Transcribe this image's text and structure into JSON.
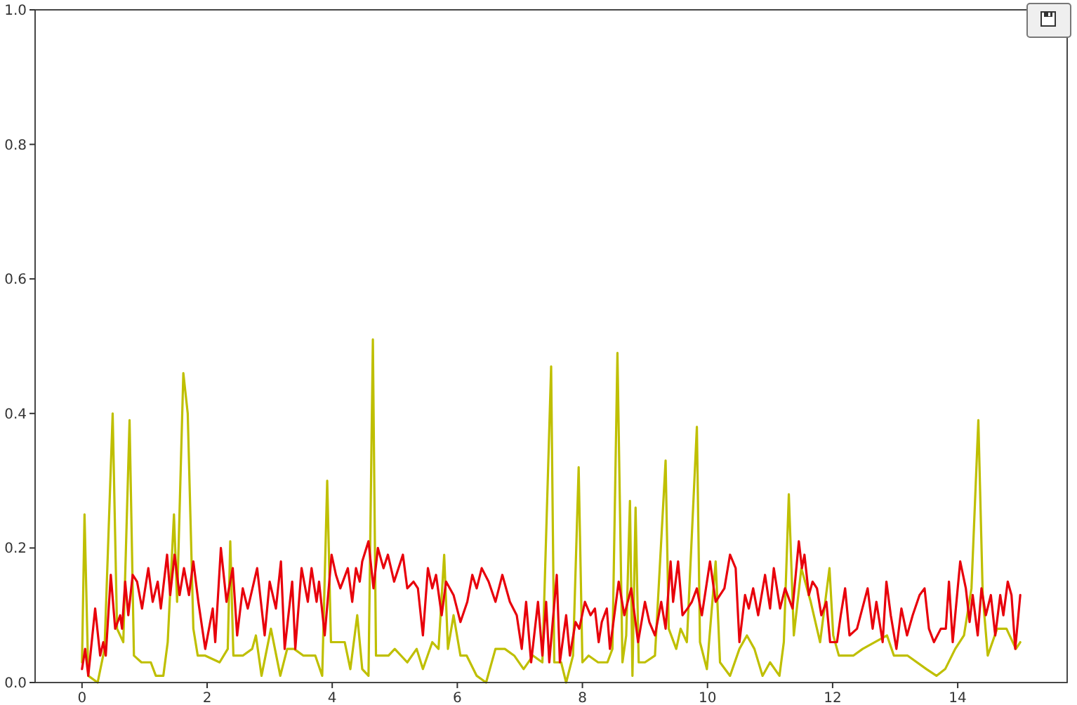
{
  "chart_data": {
    "type": "line",
    "xlim": [
      -0.75,
      15.75
    ],
    "xticks": [
      0,
      2,
      4,
      6,
      8,
      10,
      12,
      14
    ],
    "ylim": [
      0,
      1
    ],
    "yticks": [
      {
        "value": 0,
        "label": "0.0"
      },
      0.2,
      0.4,
      0.6,
      0.8,
      {
        "value": 1,
        "label": "1.0"
      }
    ],
    "series": [
      {
        "color": "#bfbf00",
        "x": [
          0,
          0.04,
          0.1,
          0.25,
          0.36,
          0.49,
          0.56,
          0.66,
          0.76,
          0.83,
          0.95,
          1.1,
          1.18,
          1.3,
          1.37,
          1.47,
          1.52,
          1.62,
          1.69,
          1.78,
          1.85,
          1.97,
          2.2,
          2.33,
          2.37,
          2.42,
          2.57,
          2.72,
          2.78,
          2.87,
          3.02,
          3.17,
          3.28,
          3.39,
          3.54,
          3.73,
          3.84,
          3.92,
          3.98,
          4.1,
          4.2,
          4.29,
          4.4,
          4.48,
          4.58,
          4.65,
          4.7,
          4.9,
          5,
          5.2,
          5.35,
          5.45,
          5.6,
          5.7,
          5.79,
          5.85,
          5.94,
          6.05,
          6.15,
          6.31,
          6.46,
          6.61,
          6.76,
          6.91,
          7.06,
          7.21,
          7.36,
          7.5,
          7.55,
          7.66,
          7.74,
          7.85,
          7.94,
          8,
          8.1,
          8.25,
          8.4,
          8.48,
          8.56,
          8.64,
          8.7,
          8.76,
          8.8,
          8.85,
          8.9,
          9,
          9.16,
          9.33,
          9.38,
          9.5,
          9.57,
          9.67,
          9.83,
          9.88,
          9.99,
          10.13,
          10.2,
          10.36,
          10.51,
          10.63,
          10.75,
          10.88,
          11,
          11.15,
          11.22,
          11.3,
          11.38,
          11.5,
          11.65,
          11.8,
          11.95,
          12.01,
          12.1,
          12.33,
          12.48,
          12.87,
          12.98,
          13.2,
          13.5,
          13.66,
          13.8,
          13.96,
          14.1,
          14.22,
          14.33,
          14.4,
          14.48,
          14.63,
          14.78,
          14.93,
          15
        ],
        "values": [
          0.03,
          0.25,
          0.01,
          0,
          0.05,
          0.4,
          0.08,
          0.06,
          0.39,
          0.04,
          0.03,
          0.03,
          0.01,
          0.01,
          0.06,
          0.25,
          0.12,
          0.46,
          0.4,
          0.08,
          0.04,
          0.04,
          0.03,
          0.05,
          0.21,
          0.04,
          0.04,
          0.05,
          0.07,
          0.01,
          0.08,
          0.01,
          0.05,
          0.05,
          0.04,
          0.04,
          0.01,
          0.3,
          0.06,
          0.06,
          0.06,
          0.02,
          0.1,
          0.02,
          0.01,
          0.51,
          0.04,
          0.04,
          0.05,
          0.03,
          0.05,
          0.02,
          0.06,
          0.05,
          0.19,
          0.05,
          0.1,
          0.04,
          0.04,
          0.01,
          0,
          0.05,
          0.05,
          0.04,
          0.02,
          0.04,
          0.03,
          0.47,
          0.03,
          0.03,
          0,
          0.04,
          0.32,
          0.03,
          0.04,
          0.03,
          0.03,
          0.05,
          0.49,
          0.03,
          0.07,
          0.27,
          0.01,
          0.26,
          0.03,
          0.03,
          0.04,
          0.33,
          0.08,
          0.05,
          0.08,
          0.06,
          0.38,
          0.06,
          0.02,
          0.18,
          0.03,
          0.01,
          0.05,
          0.07,
          0.05,
          0.01,
          0.03,
          0.01,
          0.06,
          0.28,
          0.07,
          0.17,
          0.12,
          0.06,
          0.17,
          0.07,
          0.04,
          0.04,
          0.05,
          0.07,
          0.04,
          0.04,
          0.02,
          0.01,
          0.02,
          0.05,
          0.07,
          0.14,
          0.39,
          0.13,
          0.04,
          0.08,
          0.08,
          0.05,
          0.06
        ]
      },
      {
        "color": "#e8000b",
        "x": [
          0,
          0.05,
          0.1,
          0.21,
          0.29,
          0.34,
          0.38,
          0.46,
          0.53,
          0.61,
          0.64,
          0.69,
          0.74,
          0.81,
          0.88,
          0.96,
          1.06,
          1.13,
          1.21,
          1.26,
          1.36,
          1.41,
          1.48,
          1.56,
          1.63,
          1.71,
          1.78,
          1.86,
          1.97,
          2.09,
          2.13,
          2.22,
          2.31,
          2.41,
          2.48,
          2.57,
          2.65,
          2.8,
          2.92,
          3,
          3.1,
          3.18,
          3.24,
          3.36,
          3.41,
          3.51,
          3.61,
          3.67,
          3.75,
          3.79,
          3.88,
          3.99,
          4.06,
          4.13,
          4.25,
          4.32,
          4.38,
          4.44,
          4.48,
          4.58,
          4.66,
          4.73,
          4.82,
          4.89,
          4.99,
          5.13,
          5.2,
          5.3,
          5.37,
          5.45,
          5.53,
          5.6,
          5.66,
          5.75,
          5.82,
          5.94,
          6.05,
          6.16,
          6.24,
          6.31,
          6.39,
          6.5,
          6.61,
          6.72,
          6.84,
          6.95,
          7.03,
          7.1,
          7.18,
          7.29,
          7.36,
          7.42,
          7.47,
          7.59,
          7.64,
          7.74,
          7.8,
          7.89,
          7.95,
          8.04,
          8.13,
          8.2,
          8.26,
          8.31,
          8.39,
          8.44,
          8.58,
          8.67,
          8.78,
          8.89,
          9,
          9.07,
          9.16,
          9.26,
          9.33,
          9.41,
          9.45,
          9.53,
          9.6,
          9.68,
          9.75,
          9.83,
          9.91,
          10.04,
          10.13,
          10.2,
          10.27,
          10.36,
          10.45,
          10.51,
          10.6,
          10.66,
          10.73,
          10.81,
          10.92,
          11,
          11.06,
          11.16,
          11.24,
          11.36,
          11.46,
          11.51,
          11.55,
          11.62,
          11.68,
          11.75,
          11.82,
          11.9,
          11.96,
          12.07,
          12.13,
          12.2,
          12.27,
          12.39,
          12.56,
          12.64,
          12.7,
          12.8,
          12.86,
          12.93,
          13.02,
          13.1,
          13.19,
          13.28,
          13.39,
          13.47,
          13.54,
          13.62,
          13.73,
          13.81,
          13.86,
          13.92,
          14.04,
          14.13,
          14.19,
          14.24,
          14.32,
          14.38,
          14.45,
          14.53,
          14.6,
          14.68,
          14.73,
          14.8,
          14.86,
          14.92,
          15
        ],
        "values": [
          0.02,
          0.05,
          0.01,
          0.11,
          0.04,
          0.06,
          0.04,
          0.16,
          0.08,
          0.1,
          0.08,
          0.15,
          0.1,
          0.16,
          0.15,
          0.11,
          0.17,
          0.12,
          0.15,
          0.11,
          0.19,
          0.13,
          0.19,
          0.13,
          0.17,
          0.13,
          0.18,
          0.12,
          0.05,
          0.11,
          0.06,
          0.2,
          0.12,
          0.17,
          0.07,
          0.14,
          0.11,
          0.17,
          0.07,
          0.15,
          0.11,
          0.18,
          0.05,
          0.15,
          0.05,
          0.17,
          0.12,
          0.17,
          0.12,
          0.15,
          0.07,
          0.19,
          0.16,
          0.14,
          0.17,
          0.12,
          0.17,
          0.15,
          0.18,
          0.21,
          0.14,
          0.2,
          0.17,
          0.19,
          0.15,
          0.19,
          0.14,
          0.15,
          0.14,
          0.07,
          0.17,
          0.14,
          0.16,
          0.1,
          0.15,
          0.13,
          0.09,
          0.12,
          0.16,
          0.14,
          0.17,
          0.15,
          0.12,
          0.16,
          0.12,
          0.1,
          0.05,
          0.12,
          0.03,
          0.12,
          0.04,
          0.12,
          0.03,
          0.16,
          0.03,
          0.1,
          0.04,
          0.09,
          0.08,
          0.12,
          0.1,
          0.11,
          0.06,
          0.09,
          0.11,
          0.05,
          0.15,
          0.1,
          0.14,
          0.06,
          0.12,
          0.09,
          0.07,
          0.12,
          0.08,
          0.18,
          0.12,
          0.18,
          0.1,
          0.11,
          0.12,
          0.14,
          0.1,
          0.18,
          0.12,
          0.13,
          0.14,
          0.19,
          0.17,
          0.06,
          0.13,
          0.11,
          0.14,
          0.1,
          0.16,
          0.11,
          0.17,
          0.11,
          0.14,
          0.11,
          0.21,
          0.17,
          0.19,
          0.13,
          0.15,
          0.14,
          0.1,
          0.12,
          0.06,
          0.06,
          0.1,
          0.14,
          0.07,
          0.08,
          0.14,
          0.08,
          0.12,
          0.06,
          0.15,
          0.1,
          0.05,
          0.11,
          0.07,
          0.1,
          0.13,
          0.14,
          0.08,
          0.06,
          0.08,
          0.08,
          0.15,
          0.06,
          0.18,
          0.14,
          0.09,
          0.13,
          0.07,
          0.14,
          0.1,
          0.13,
          0.07,
          0.13,
          0.1,
          0.15,
          0.13,
          0.05,
          0.13
        ]
      }
    ]
  }
}
